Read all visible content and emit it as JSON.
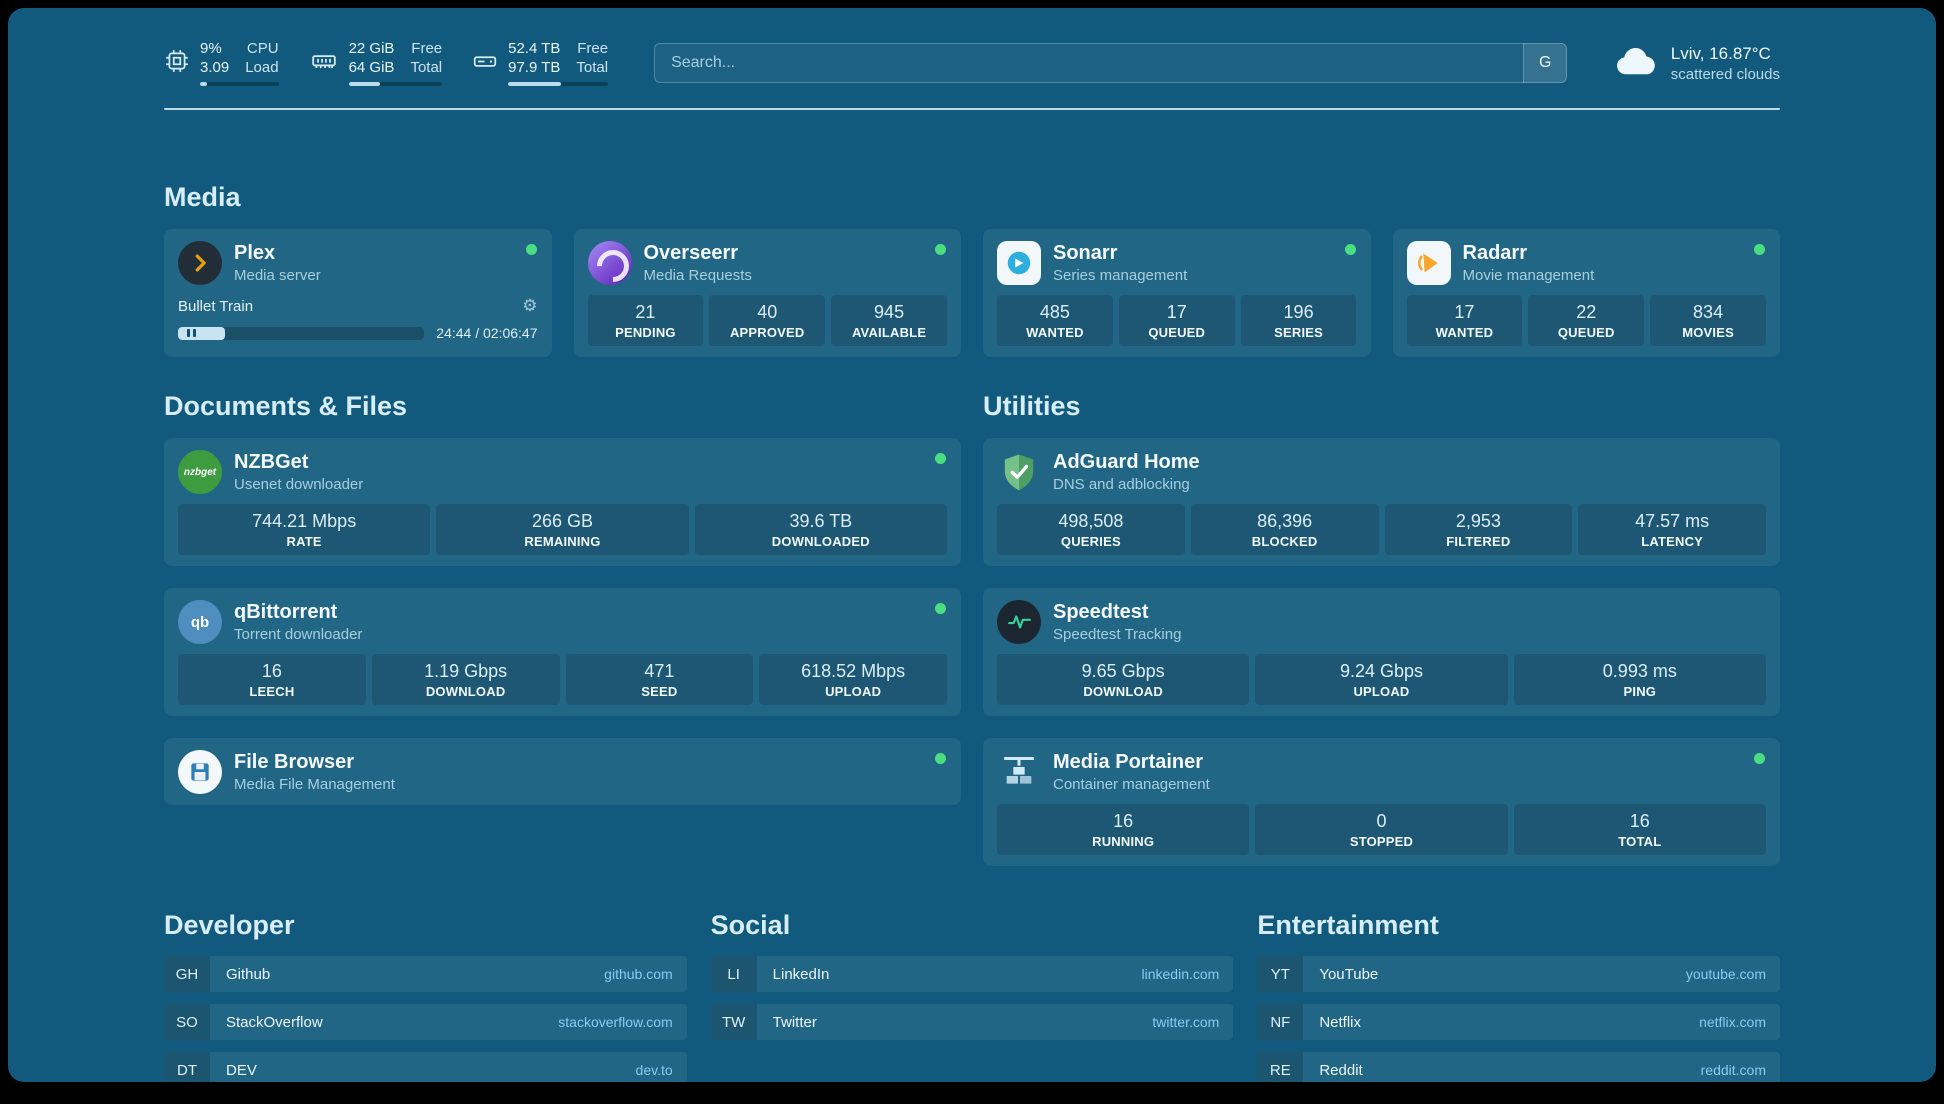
{
  "colors": {
    "background": "#115a7d",
    "status_online": "#4ade80",
    "link_domain": "#85cdf2",
    "plex_gold": "#e5a00d"
  },
  "header": {
    "metrics": [
      {
        "icon": "cpu-icon",
        "values": [
          "9%",
          "3.09"
        ],
        "labels": [
          "CPU",
          "Load"
        ],
        "progress": 9
      },
      {
        "icon": "ram-icon",
        "values": [
          "22 GiB",
          "64 GiB"
        ],
        "labels": [
          "Free",
          "Total"
        ],
        "progress": 34
      },
      {
        "icon": "disk-icon",
        "values": [
          "52.4 TB",
          "97.9 TB"
        ],
        "labels": [
          "Free",
          "Total"
        ],
        "progress": 53
      }
    ],
    "search": {
      "placeholder": "Search...",
      "engine_button": "G"
    },
    "weather": {
      "icon": "cloud-icon",
      "location": "Lviv, 16.87°C",
      "condition": "scattered clouds"
    }
  },
  "media": {
    "title": "Media",
    "plex": {
      "icon": "plex-icon",
      "name": "Plex",
      "subtitle": "Media server",
      "online": true,
      "now_playing": "Bullet Train",
      "time": "24:44 / 02:06:47",
      "progress": 19
    },
    "overseerr": {
      "icon": "overseerr-icon",
      "name": "Overseerr",
      "subtitle": "Media Requests",
      "online": true,
      "stats": [
        {
          "value": "21",
          "label": "PENDING"
        },
        {
          "value": "40",
          "label": "APPROVED"
        },
        {
          "value": "945",
          "label": "AVAILABLE"
        }
      ]
    },
    "sonarr": {
      "icon": "sonarr-icon",
      "name": "Sonarr",
      "subtitle": "Series management",
      "online": true,
      "stats": [
        {
          "value": "485",
          "label": "WANTED"
        },
        {
          "value": "17",
          "label": "QUEUED"
        },
        {
          "value": "196",
          "label": "SERIES"
        }
      ]
    },
    "radarr": {
      "icon": "radarr-icon",
      "name": "Radarr",
      "subtitle": "Movie management",
      "online": true,
      "stats": [
        {
          "value": "17",
          "label": "WANTED"
        },
        {
          "value": "22",
          "label": "QUEUED"
        },
        {
          "value": "834",
          "label": "MOVIES"
        }
      ]
    }
  },
  "documents": {
    "title": "Documents & Files",
    "nzbget": {
      "icon": "nzbget-icon",
      "icon_text": "nzbget",
      "name": "NZBGet",
      "subtitle": "Usenet downloader",
      "online": true,
      "stats": [
        {
          "value": "744.21 Mbps",
          "label": "RATE"
        },
        {
          "value": "266 GB",
          "label": "REMAINING"
        },
        {
          "value": "39.6 TB",
          "label": "DOWNLOADED"
        }
      ]
    },
    "qbittorrent": {
      "icon": "qbittorrent-icon",
      "icon_text": "qb",
      "name": "qBittorrent",
      "subtitle": "Torrent downloader",
      "online": true,
      "stats": [
        {
          "value": "16",
          "label": "LEECH"
        },
        {
          "value": "1.19 Gbps",
          "label": "DOWNLOAD"
        },
        {
          "value": "471",
          "label": "SEED"
        },
        {
          "value": "618.52 Mbps",
          "label": "UPLOAD"
        }
      ]
    },
    "filebrowser": {
      "icon": "filebrowser-icon",
      "name": "File Browser",
      "subtitle": "Media File Management",
      "online": true
    }
  },
  "utilities": {
    "title": "Utilities",
    "adguard": {
      "icon": "adguard-icon",
      "name": "AdGuard Home",
      "subtitle": "DNS and adblocking",
      "stats": [
        {
          "value": "498,508",
          "label": "QUERIES"
        },
        {
          "value": "86,396",
          "label": "BLOCKED"
        },
        {
          "value": "2,953",
          "label": "FILTERED"
        },
        {
          "value": "47.57 ms",
          "label": "LATENCY"
        }
      ]
    },
    "speedtest": {
      "icon": "speedtest-icon",
      "name": "Speedtest",
      "subtitle": "Speedtest Tracking",
      "stats": [
        {
          "value": "9.65 Gbps",
          "label": "DOWNLOAD"
        },
        {
          "value": "9.24 Gbps",
          "label": "UPLOAD"
        },
        {
          "value": "0.993 ms",
          "label": "PING"
        }
      ]
    },
    "portainer": {
      "icon": "portainer-icon",
      "name": "Media Portainer",
      "subtitle": "Container management",
      "online": true,
      "stats": [
        {
          "value": "16",
          "label": "RUNNING"
        },
        {
          "value": "0",
          "label": "STOPPED"
        },
        {
          "value": "16",
          "label": "TOTAL"
        }
      ]
    }
  },
  "bookmark_groups": [
    {
      "title": "Developer",
      "links": [
        {
          "abbr": "GH",
          "name": "Github",
          "domain": "github.com"
        },
        {
          "abbr": "SO",
          "name": "StackOverflow",
          "domain": "stackoverflow.com"
        },
        {
          "abbr": "DT",
          "name": "DEV",
          "domain": "dev.to"
        }
      ]
    },
    {
      "title": "Social",
      "links": [
        {
          "abbr": "LI",
          "name": "LinkedIn",
          "domain": "linkedin.com"
        },
        {
          "abbr": "TW",
          "name": "Twitter",
          "domain": "twitter.com"
        }
      ]
    },
    {
      "title": "Entertainment",
      "links": [
        {
          "abbr": "YT",
          "name": "YouTube",
          "domain": "youtube.com"
        },
        {
          "abbr": "NF",
          "name": "Netflix",
          "domain": "netflix.com"
        },
        {
          "abbr": "RE",
          "name": "Reddit",
          "domain": "reddit.com"
        }
      ]
    }
  ]
}
